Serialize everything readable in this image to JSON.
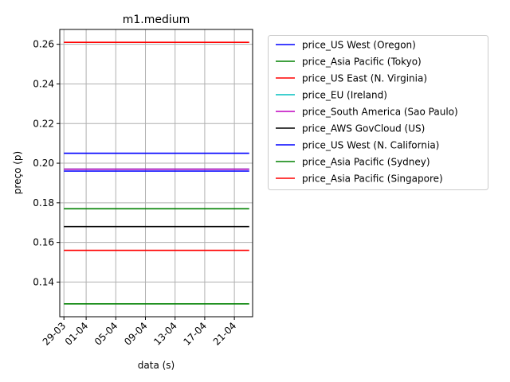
{
  "chart_data": {
    "type": "line",
    "title": "m1.medium",
    "xlabel": "data (s)",
    "ylabel": "preço (p)",
    "x_range": [
      "2017-03-29",
      "2017-04-24"
    ],
    "x_ticks": [
      {
        "date": "2017-03-29",
        "label": "29-03"
      },
      {
        "date": "2017-04-01",
        "label": "01-04"
      },
      {
        "date": "2017-04-05",
        "label": "05-04"
      },
      {
        "date": "2017-04-09",
        "label": "09-04"
      },
      {
        "date": "2017-04-13",
        "label": "13-04"
      },
      {
        "date": "2017-04-17",
        "label": "17-04"
      },
      {
        "date": "2017-04-21",
        "label": "21-04"
      }
    ],
    "ylim": [
      0.1225,
      0.2675
    ],
    "y_ticks": [
      0.14,
      0.16,
      0.18,
      0.2,
      0.22,
      0.24,
      0.26
    ],
    "y_tick_labels": [
      "0.14",
      "0.16",
      "0.18",
      "0.20",
      "0.22",
      "0.24",
      "0.26"
    ],
    "grid": true,
    "legend_position": "outside-right",
    "series": [
      {
        "name": "price_US West (Oregon)",
        "color": "#0000ff",
        "x": [
          "2017-03-29",
          "2017-04-23"
        ],
        "y": [
          0.205,
          0.205
        ]
      },
      {
        "name": "price_Asia Pacific (Tokyo)",
        "color": "#008000",
        "x": [
          "2017-03-29",
          "2017-04-23"
        ],
        "y": [
          0.177,
          0.177
        ]
      },
      {
        "name": "price_US East (N. Virginia)",
        "color": "#ff0000",
        "x": [
          "2017-03-29",
          "2017-04-23"
        ],
        "y": [
          0.261,
          0.261
        ]
      },
      {
        "name": "price_EU (Ireland)",
        "color": "#00bfbf",
        "x": [
          "2017-03-29",
          "2017-04-23"
        ],
        "y": [
          0.197,
          0.197
        ]
      },
      {
        "name": "price_South America (Sao Paulo)",
        "color": "#bf00bf",
        "x": [
          "2017-03-29",
          "2017-04-23"
        ],
        "y": [
          0.197,
          0.197
        ]
      },
      {
        "name": "price_AWS GovCloud (US)",
        "color": "#000000",
        "x": [
          "2017-03-29",
          "2017-04-23"
        ],
        "y": [
          0.168,
          0.168
        ]
      },
      {
        "name": "price_US West (N. California)",
        "color": "#0000ff",
        "x": [
          "2017-03-29",
          "2017-04-23"
        ],
        "y": [
          0.196,
          0.196
        ]
      },
      {
        "name": "price_Asia Pacific (Sydney)",
        "color": "#008000",
        "x": [
          "2017-03-29",
          "2017-04-23"
        ],
        "y": [
          0.129,
          0.129
        ]
      },
      {
        "name": "price_Asia Pacific (Singapore)",
        "color": "#ff0000",
        "x": [
          "2017-03-29",
          "2017-04-23"
        ],
        "y": [
          0.156,
          0.156
        ]
      }
    ]
  }
}
